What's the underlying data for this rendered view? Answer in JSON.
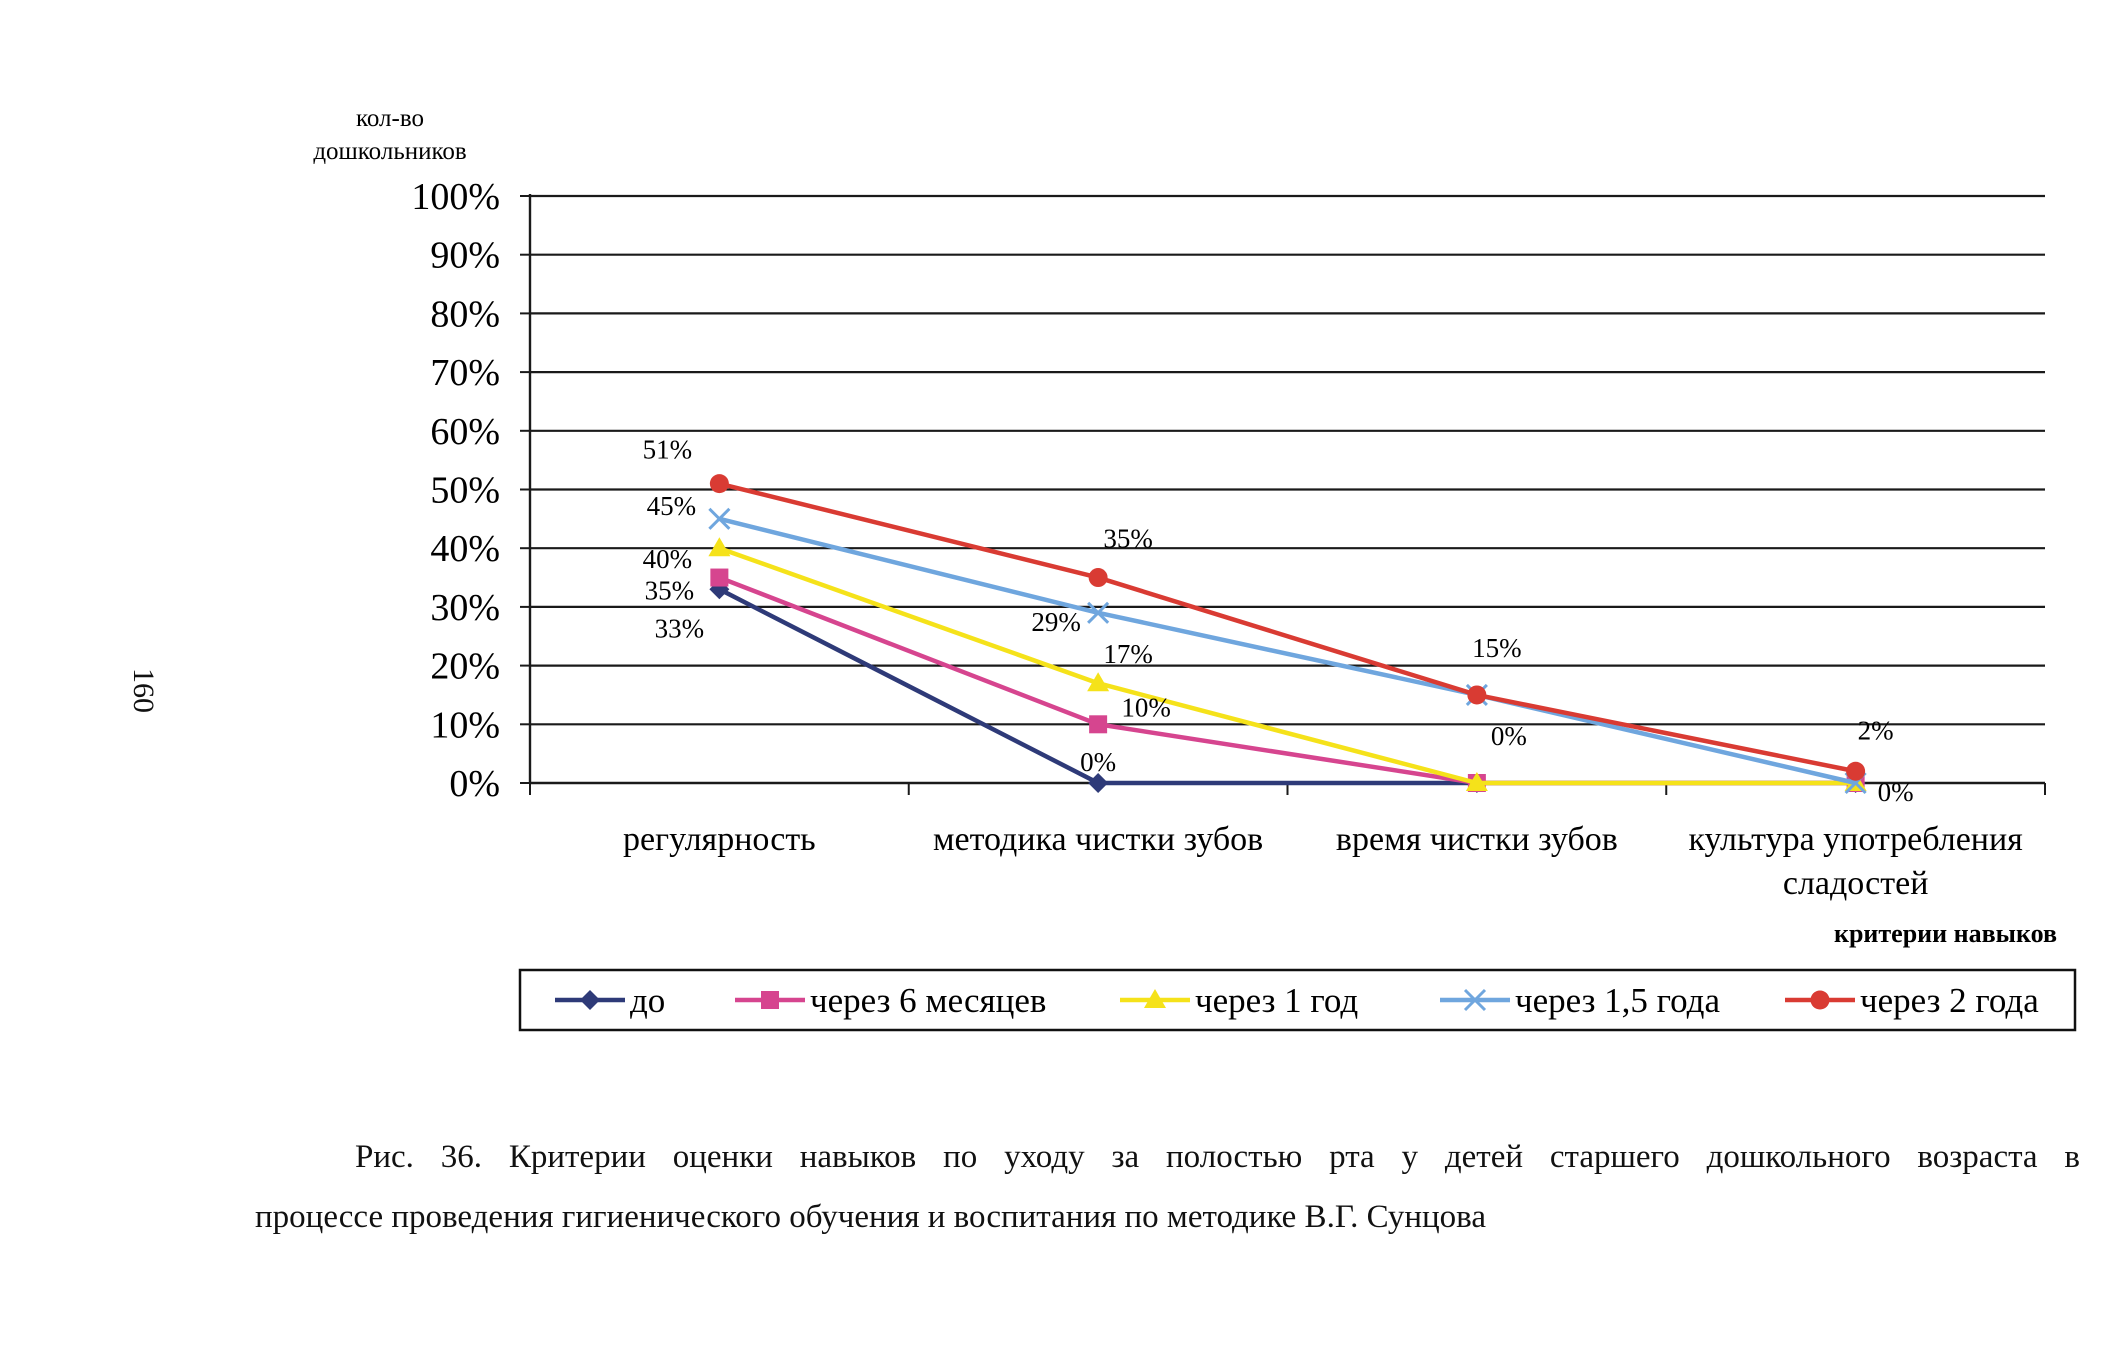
{
  "page_number": "160",
  "chart_data": {
    "type": "line",
    "ylabel": [
      "кол-во",
      "дошкольников"
    ],
    "xlabel": "критерии навыков",
    "categories": [
      [
        "регулярность"
      ],
      [
        "методика чистки зубов"
      ],
      [
        "время чистки зубов"
      ],
      [
        "культура употребления",
        "сладостей"
      ]
    ],
    "yticks": [
      "0%",
      "10%",
      "20%",
      "30%",
      "40%",
      "50%",
      "60%",
      "70%",
      "80%",
      "90%",
      "100%"
    ],
    "ylim": [
      0,
      100
    ],
    "grid": true,
    "legend_position": "bottom",
    "series": [
      {
        "name": "до",
        "color": "#2e3a78",
        "marker": "diamond",
        "values": [
          33,
          0,
          0,
          0
        ],
        "labels": [
          "33%",
          "0%",
          "",
          ""
        ]
      },
      {
        "name": "через 6 месяцев",
        "color": "#d6458f",
        "marker": "square",
        "values": [
          35,
          10,
          0,
          0
        ],
        "labels": [
          "35%",
          "10%",
          "",
          ""
        ]
      },
      {
        "name": "через 1 год",
        "color": "#f5e21a",
        "marker": "triangle",
        "values": [
          40,
          17,
          0,
          0
        ],
        "labels": [
          "40%",
          "17%",
          "0%",
          ""
        ]
      },
      {
        "name": "через 1,5 года",
        "color": "#6fa6de",
        "marker": "x",
        "values": [
          45,
          29,
          15,
          0
        ],
        "labels": [
          "45%",
          "29%",
          "",
          "0%"
        ]
      },
      {
        "name": "через 2 года",
        "color": "#d93b33",
        "marker": "circle",
        "values": [
          51,
          35,
          15,
          2
        ],
        "labels": [
          "51%",
          "35%",
          "15%",
          "2%"
        ]
      }
    ]
  },
  "caption": {
    "line1": "Рис. 36. Критерии оценки навыков по уходу за полостью рта у детей старшего дошкольного возраста в",
    "line2": "процессе проведения гигиенического обучения и воспитания по методике В.Г. Сунцова"
  }
}
